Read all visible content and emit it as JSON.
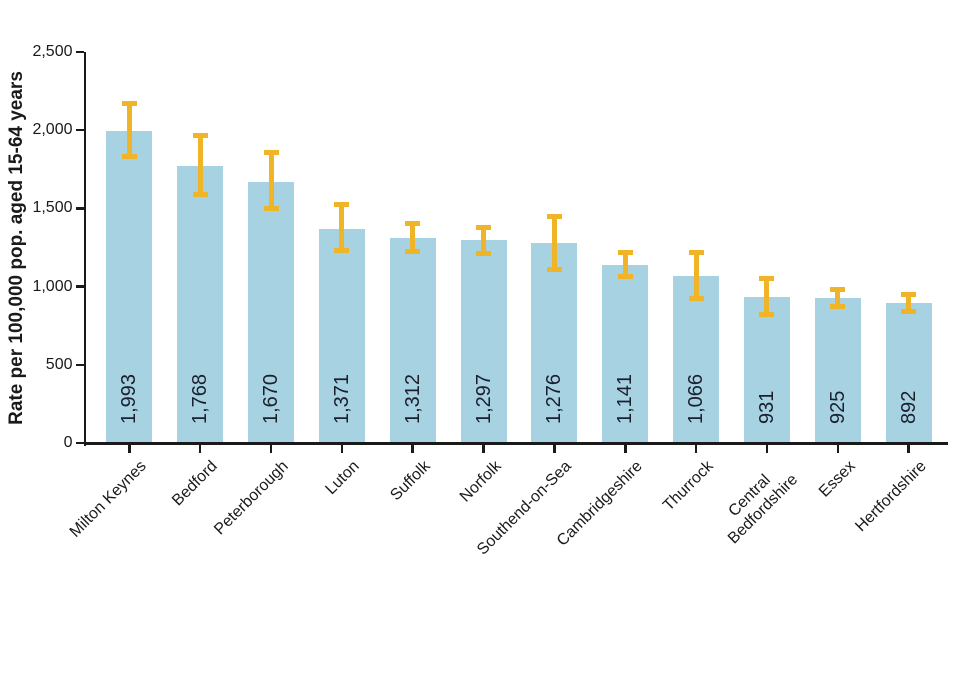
{
  "chart_data": {
    "type": "bar",
    "title": "",
    "ylabel": "Rate per 100,000 pop. aged 15-64 years",
    "xlabel": "",
    "ylim": [
      0,
      2500
    ],
    "ytick_interval": 500,
    "ytick_labels": [
      "0",
      "500",
      "1,000",
      "1,500",
      "2,000",
      "2,500"
    ],
    "grid": false,
    "legend": null,
    "colors": {
      "bar": "#a6d2e2",
      "error_bar": "#f0b428",
      "axis": "#1a1a1a",
      "tick_text": "#1a1a1a",
      "value_label_text": "#1c1f2e",
      "background": "#ffffff"
    },
    "categories": [
      "Milton Keynes",
      "Bedford",
      "Peterborough",
      "Luton",
      "Suffolk",
      "Norfolk",
      "Southend-on-Sea",
      "Cambridgeshire",
      "Thurrock",
      "Central Bedfordshire",
      "Essex",
      "Hertfordshire"
    ],
    "xtick_lines": [
      [
        "Milton Keynes"
      ],
      [
        "Bedford"
      ],
      [
        "Peterborough"
      ],
      [
        "Luton"
      ],
      [
        "Suffolk"
      ],
      [
        "Norfolk"
      ],
      [
        "Southend-on-Sea"
      ],
      [
        "Cambridgeshire"
      ],
      [
        "Thurrock"
      ],
      [
        "Central",
        "Bedfordshire"
      ],
      [
        "Essex"
      ],
      [
        "Hertfordshire"
      ]
    ],
    "series": [
      {
        "name": "Rate per 100,000 pop. aged 15-64 years",
        "values": [
          1993,
          1768,
          1670,
          1371,
          1312,
          1297,
          1276,
          1141,
          1066,
          931,
          925,
          892
        ],
        "value_labels": [
          "1,993",
          "1,768",
          "1,670",
          "1,371",
          "1,312",
          "1,297",
          "1,276",
          "1,141",
          "1,066",
          "931",
          "925",
          "892"
        ],
        "ci_low": [
          1830,
          1590,
          1500,
          1230,
          1225,
          1210,
          1110,
          1065,
          925,
          820,
          875,
          840
        ],
        "ci_high": [
          2170,
          1965,
          1860,
          1525,
          1405,
          1375,
          1450,
          1215,
          1220,
          1050,
          980,
          950
        ]
      }
    ]
  }
}
